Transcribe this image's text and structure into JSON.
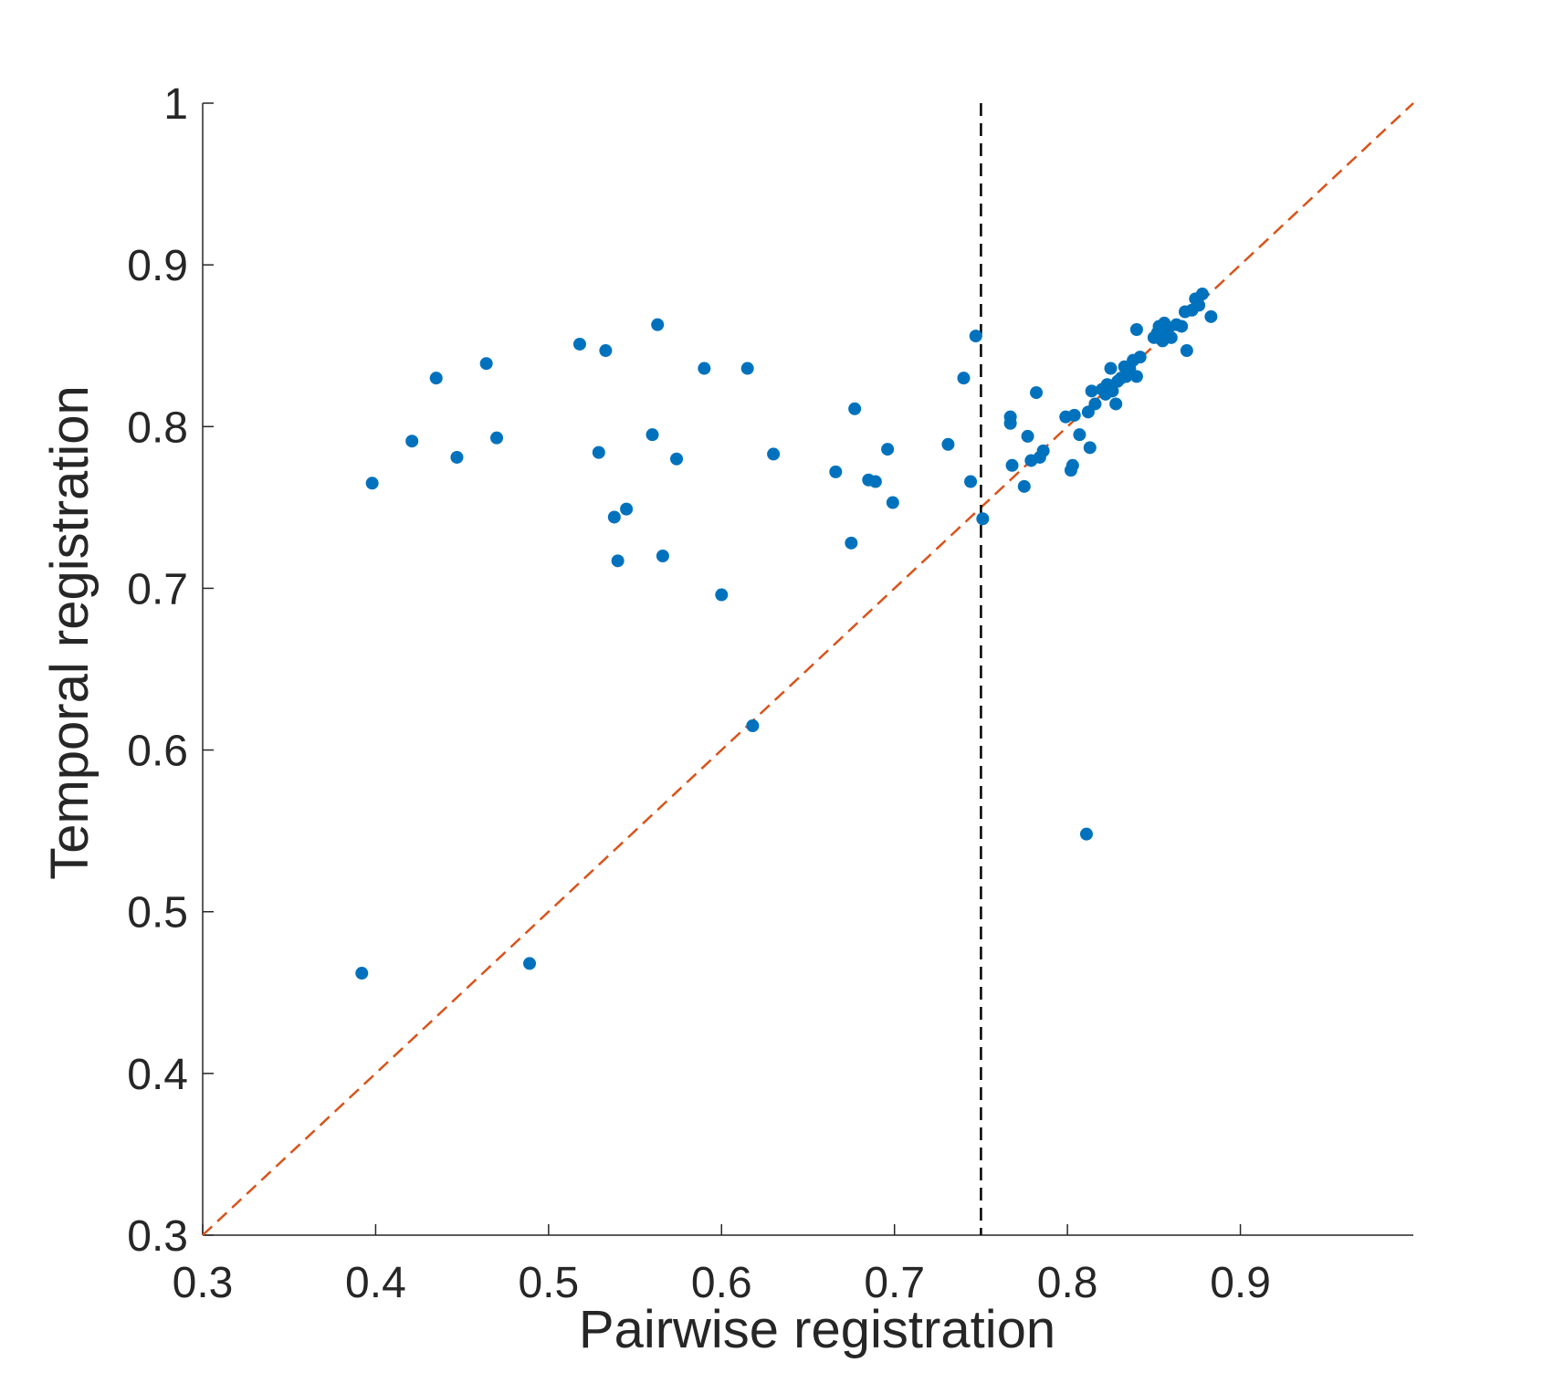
{
  "colors": {
    "points": "#0072BD",
    "diagonal": "#D95319",
    "threshold": "#000000",
    "axes": "#262626"
  },
  "chart_data": {
    "type": "scatter",
    "title": "",
    "xlabel": "Pairwise registration",
    "ylabel": "Temporal registration",
    "xlim": [
      0.3,
      1.0
    ],
    "ylim": [
      0.3,
      1.0
    ],
    "xticks": [
      0.3,
      0.4,
      0.5,
      0.6,
      0.7,
      0.8,
      0.9
    ],
    "xtick_labels": [
      "0.3",
      "0.4",
      "0.5",
      "0.6",
      "0.7",
      "0.8",
      "0.9"
    ],
    "yticks": [
      0.3,
      0.4,
      0.5,
      0.6,
      0.7,
      0.8,
      0.9,
      1.0
    ],
    "ytick_labels": [
      "0.3",
      "0.4",
      "0.5",
      "0.6",
      "0.7",
      "0.8",
      "0.9",
      "1"
    ],
    "grid": false,
    "reference_lines": [
      {
        "kind": "diagonal",
        "from": [
          0.3,
          0.3
        ],
        "to": [
          1.0,
          1.0
        ],
        "style": "dashed"
      },
      {
        "kind": "vertical",
        "x": 0.75,
        "y_range": [
          0.3,
          1.0
        ],
        "style": "dashed"
      }
    ],
    "points": [
      [
        0.392,
        0.462
      ],
      [
        0.398,
        0.765
      ],
      [
        0.421,
        0.791
      ],
      [
        0.435,
        0.83
      ],
      [
        0.447,
        0.781
      ],
      [
        0.464,
        0.839
      ],
      [
        0.47,
        0.793
      ],
      [
        0.489,
        0.468
      ],
      [
        0.518,
        0.851
      ],
      [
        0.529,
        0.784
      ],
      [
        0.533,
        0.847
      ],
      [
        0.538,
        0.744
      ],
      [
        0.54,
        0.717
      ],
      [
        0.545,
        0.749
      ],
      [
        0.56,
        0.795
      ],
      [
        0.563,
        0.863
      ],
      [
        0.566,
        0.72
      ],
      [
        0.574,
        0.78
      ],
      [
        0.59,
        0.836
      ],
      [
        0.6,
        0.696
      ],
      [
        0.615,
        0.836
      ],
      [
        0.618,
        0.615
      ],
      [
        0.63,
        0.783
      ],
      [
        0.666,
        0.772
      ],
      [
        0.675,
        0.728
      ],
      [
        0.677,
        0.811
      ],
      [
        0.685,
        0.767
      ],
      [
        0.689,
        0.766
      ],
      [
        0.696,
        0.786
      ],
      [
        0.699,
        0.753
      ],
      [
        0.731,
        0.789
      ],
      [
        0.74,
        0.83
      ],
      [
        0.744,
        0.766
      ],
      [
        0.747,
        0.856
      ],
      [
        0.751,
        0.743
      ],
      [
        0.767,
        0.806
      ],
      [
        0.767,
        0.802
      ],
      [
        0.768,
        0.776
      ],
      [
        0.775,
        0.763
      ],
      [
        0.777,
        0.794
      ],
      [
        0.779,
        0.779
      ],
      [
        0.782,
        0.821
      ],
      [
        0.784,
        0.781
      ],
      [
        0.786,
        0.785
      ],
      [
        0.799,
        0.806
      ],
      [
        0.802,
        0.773
      ],
      [
        0.803,
        0.776
      ],
      [
        0.804,
        0.807
      ],
      [
        0.807,
        0.795
      ],
      [
        0.811,
        0.548
      ],
      [
        0.812,
        0.809
      ],
      [
        0.813,
        0.787
      ],
      [
        0.814,
        0.822
      ],
      [
        0.816,
        0.814
      ],
      [
        0.82,
        0.823
      ],
      [
        0.822,
        0.82
      ],
      [
        0.823,
        0.826
      ],
      [
        0.825,
        0.836
      ],
      [
        0.826,
        0.822
      ],
      [
        0.828,
        0.814
      ],
      [
        0.829,
        0.828
      ],
      [
        0.831,
        0.83
      ],
      [
        0.833,
        0.837
      ],
      [
        0.834,
        0.831
      ],
      [
        0.836,
        0.836
      ],
      [
        0.838,
        0.841
      ],
      [
        0.84,
        0.831
      ],
      [
        0.84,
        0.86
      ],
      [
        0.842,
        0.843
      ],
      [
        0.85,
        0.855
      ],
      [
        0.852,
        0.858
      ],
      [
        0.853,
        0.862
      ],
      [
        0.855,
        0.853
      ],
      [
        0.856,
        0.864
      ],
      [
        0.858,
        0.86
      ],
      [
        0.86,
        0.855
      ],
      [
        0.863,
        0.863
      ],
      [
        0.866,
        0.862
      ],
      [
        0.868,
        0.871
      ],
      [
        0.869,
        0.847
      ],
      [
        0.872,
        0.872
      ],
      [
        0.874,
        0.879
      ],
      [
        0.876,
        0.875
      ],
      [
        0.878,
        0.882
      ],
      [
        0.883,
        0.868
      ]
    ]
  }
}
